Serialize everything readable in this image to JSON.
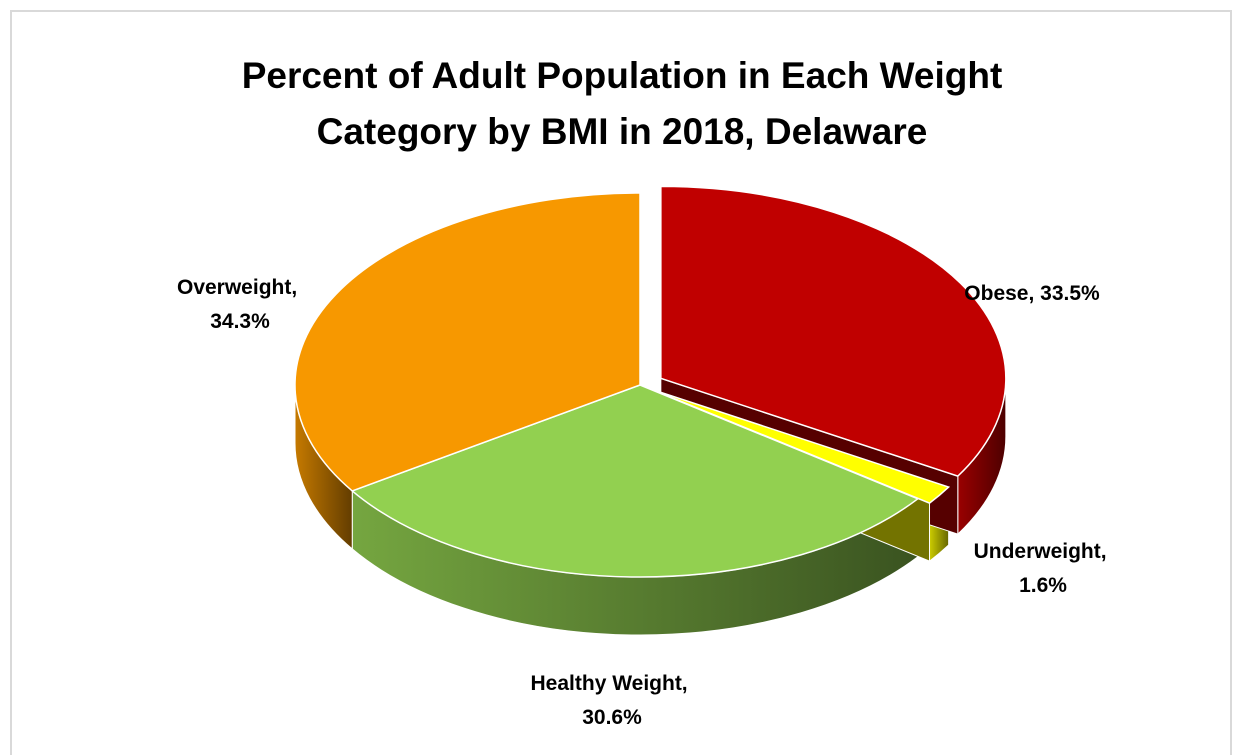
{
  "chart_data": {
    "type": "pie3d",
    "title": "Percent of Adult Population in Each Weight Category by BMI in 2018, Delaware",
    "values": [
      33.5,
      1.6,
      30.6,
      34.3
    ],
    "value_labels": [
      "Obese, 33.5%",
      "Underweight, 1.6%",
      "Healthy Weight, 30.6%",
      "Overweight, 34.3%"
    ],
    "colors": [
      "#c00000",
      "#ffff00",
      "#92d050",
      "#f79800"
    ]
  }
}
